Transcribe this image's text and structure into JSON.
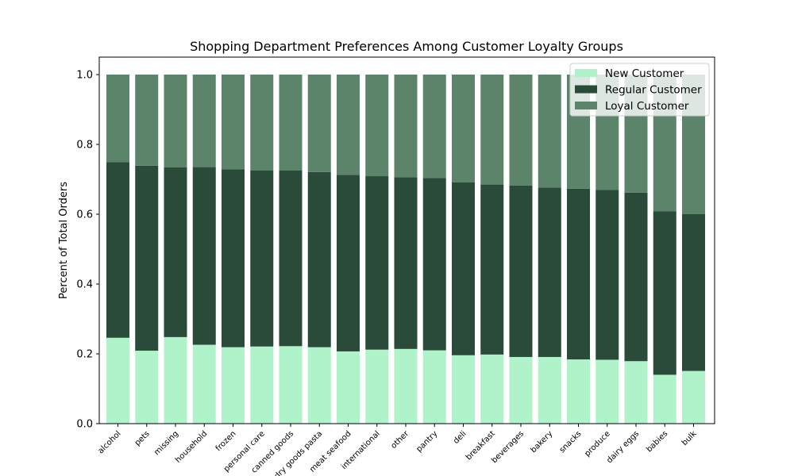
{
  "chart_data": {
    "type": "bar",
    "stacked": true,
    "title": "Shopping Department Preferences Among Customer Loyalty Groups",
    "xlabel": "",
    "ylabel": "Percent of Total Orders",
    "ylim": [
      0,
      1.05
    ],
    "yticks": [
      "0.0",
      "0.2",
      "0.4",
      "0.6",
      "0.8",
      "1.0"
    ],
    "grid": false,
    "legend_position": "top-right",
    "categories": [
      "alcohol",
      "pets",
      "missing",
      "household",
      "frozen",
      "personal care",
      "canned goods",
      "dry goods pasta",
      "meat seafood",
      "international",
      "other",
      "pantry",
      "deli",
      "breakfast",
      "beverages",
      "bakery",
      "snacks",
      "produce",
      "dairy eggs",
      "babies",
      "bulk"
    ],
    "series": [
      {
        "name": "New Customer",
        "color": "#b0f2c9",
        "values": [
          0.246,
          0.209,
          0.248,
          0.226,
          0.219,
          0.221,
          0.222,
          0.219,
          0.207,
          0.212,
          0.214,
          0.21,
          0.196,
          0.198,
          0.191,
          0.191,
          0.184,
          0.183,
          0.179,
          0.14,
          0.151
        ]
      },
      {
        "name": "Regular Customer",
        "color": "#2a4a3a",
        "values": [
          0.503,
          0.53,
          0.486,
          0.509,
          0.51,
          0.504,
          0.503,
          0.502,
          0.506,
          0.497,
          0.492,
          0.494,
          0.495,
          0.487,
          0.491,
          0.485,
          0.489,
          0.487,
          0.483,
          0.468,
          0.449
        ]
      },
      {
        "name": "Loyal Customer",
        "color": "#5b846a",
        "values": [
          0.251,
          0.261,
          0.266,
          0.265,
          0.271,
          0.275,
          0.275,
          0.279,
          0.287,
          0.291,
          0.294,
          0.296,
          0.309,
          0.315,
          0.318,
          0.324,
          0.327,
          0.33,
          0.338,
          0.392,
          0.4
        ]
      }
    ]
  }
}
